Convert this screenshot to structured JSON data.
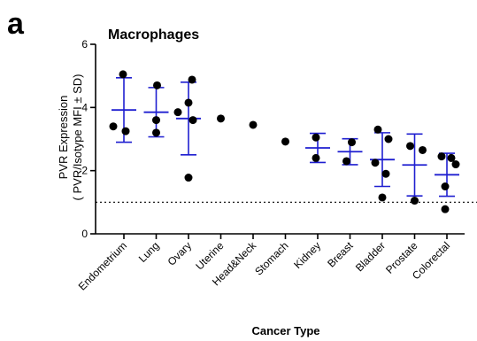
{
  "panel_label": "a",
  "chart_data": {
    "type": "scatter",
    "title": "Macrophages",
    "ylabel_line1": "PVR Expression",
    "ylabel_line2": "( PVR/Isotype MFI ± SD)",
    "xlabel": "Cancer Type",
    "ylim": [
      0,
      6
    ],
    "yticks": [
      0,
      2,
      4,
      6
    ],
    "reference_line": 1,
    "categories": [
      "Endometrium",
      "Lung",
      "Ovary",
      "Uterine",
      "Head&Neck",
      "Stomach",
      "Kidney",
      "Breast",
      "Bladder",
      "Prostate",
      "Colorectal"
    ],
    "points": [
      [
        5.05,
        3.4,
        3.25
      ],
      [
        4.7,
        3.6,
        3.2
      ],
      [
        4.88,
        4.15,
        3.85,
        3.6,
        1.78
      ],
      [
        3.65
      ],
      [
        3.45
      ],
      [
        2.92
      ],
      [
        3.05,
        2.4
      ],
      [
        2.9,
        2.3
      ],
      [
        3.3,
        3.0,
        2.25,
        1.9,
        1.15
      ],
      [
        2.78,
        2.65,
        1.05
      ],
      [
        2.45,
        2.4,
        2.2,
        1.5,
        0.78
      ]
    ],
    "mean": [
      3.92,
      3.85,
      3.65,
      null,
      null,
      null,
      2.72,
      2.6,
      2.35,
      2.18,
      1.87
    ],
    "sd": [
      1.02,
      0.78,
      1.15,
      null,
      null,
      null,
      0.46,
      0.41,
      0.85,
      0.98,
      0.68
    ],
    "point_color": "#000000",
    "error_color": "#1f1fd0"
  }
}
